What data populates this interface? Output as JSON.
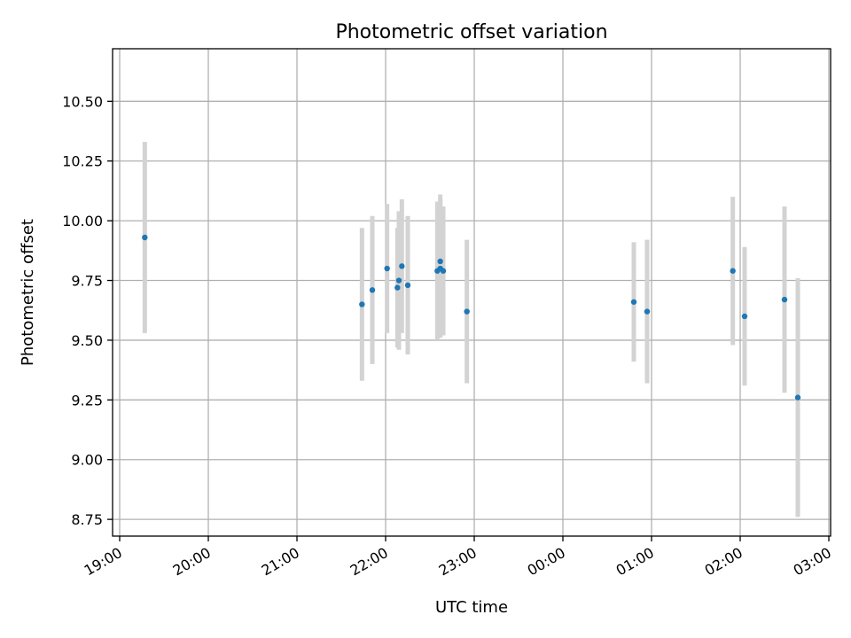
{
  "chart_data": {
    "type": "scatter",
    "title": "Photometric offset variation",
    "xlabel": "UTC time",
    "ylabel": "Photometric offset",
    "grid": true,
    "x_axis_type": "datetime",
    "x_tick_labels": [
      "19:00",
      "20:00",
      "21:00",
      "22:00",
      "23:00",
      "00:00",
      "01:00",
      "02:00",
      "03:00"
    ],
    "xlim": [
      "19:00",
      "03:00"
    ],
    "y_ticks": [
      8.75,
      9.0,
      9.25,
      9.5,
      9.75,
      10.0,
      10.25,
      10.5
    ],
    "y_tick_labels": [
      "8.75",
      "9.00",
      "9.25",
      "9.50",
      "9.75",
      "10.00",
      "10.25",
      "10.50"
    ],
    "ylim": [
      8.68,
      10.72
    ],
    "colors": {
      "point": "#1f77b4",
      "errorbar": "#d3d3d3",
      "grid": "#b0b0b0"
    },
    "series": [
      {
        "points": [
          {
            "x": "19:17",
            "y": 9.93,
            "yerr": 0.4
          },
          {
            "x": "21:44",
            "y": 9.65,
            "yerr": 0.32
          },
          {
            "x": "21:51",
            "y": 9.71,
            "yerr": 0.31
          },
          {
            "x": "22:01",
            "y": 9.8,
            "yerr": 0.27
          },
          {
            "x": "22:08",
            "y": 9.72,
            "yerr": 0.25
          },
          {
            "x": "22:09",
            "y": 9.75,
            "yerr": 0.29
          },
          {
            "x": "22:11",
            "y": 9.81,
            "yerr": 0.28
          },
          {
            "x": "22:15",
            "y": 9.73,
            "yerr": 0.29
          },
          {
            "x": "22:35",
            "y": 9.79,
            "yerr": 0.29
          },
          {
            "x": "22:37",
            "y": 9.83,
            "yerr": 0.28
          },
          {
            "x": "22:37",
            "y": 9.8,
            "yerr": 0.29
          },
          {
            "x": "22:39",
            "y": 9.79,
            "yerr": 0.27
          },
          {
            "x": "22:55",
            "y": 9.62,
            "yerr": 0.3
          },
          {
            "x": "00:48",
            "y": 9.66,
            "yerr": 0.25
          },
          {
            "x": "00:57",
            "y": 9.62,
            "yerr": 0.3
          },
          {
            "x": "01:55",
            "y": 9.79,
            "yerr": 0.31
          },
          {
            "x": "02:03",
            "y": 9.6,
            "yerr": 0.29
          },
          {
            "x": "02:30",
            "y": 9.67,
            "yerr": 0.39
          },
          {
            "x": "02:39",
            "y": 9.26,
            "yerr": 0.5
          }
        ]
      }
    ]
  }
}
